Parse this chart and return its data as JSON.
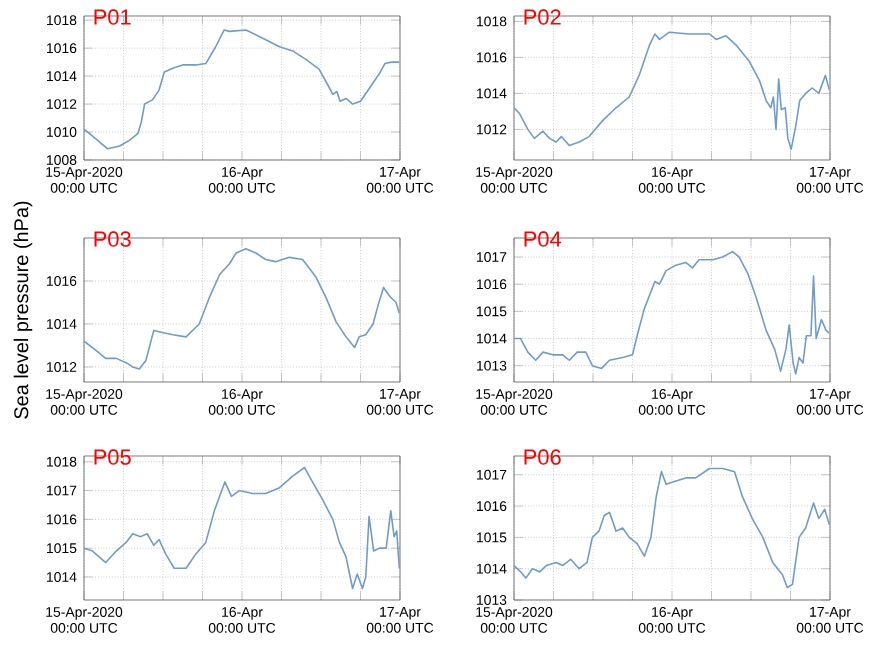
{
  "chart_data": [
    {
      "type": "line",
      "title": "P01",
      "x": [
        "2020-04-15T00:00",
        "2020-04-15T01:18",
        "2020-04-15T03:36",
        "2020-04-15T05:24",
        "2020-04-15T06:54",
        "2020-04-15T08:12",
        "2020-04-15T08:42",
        "2020-04-15T09:12",
        "2020-04-15T10:24",
        "2020-04-15T11:24",
        "2020-04-15T12:12",
        "2020-04-15T13:42",
        "2020-04-15T15:00",
        "2020-04-15T17:00",
        "2020-04-15T18:30",
        "2020-04-15T20:00",
        "2020-04-15T21:18",
        "2020-04-15T22:06",
        "2020-04-16T00:36",
        "2020-04-16T03:36",
        "2020-04-16T05:42",
        "2020-04-16T07:42",
        "2020-04-16T09:42",
        "2020-04-16T11:42",
        "2020-04-16T13:00",
        "2020-04-16T13:48",
        "2020-04-16T14:24",
        "2020-04-16T14:54",
        "2020-04-16T15:48",
        "2020-04-16T16:48",
        "2020-04-16T18:00",
        "2020-04-16T19:18",
        "2020-04-16T20:54",
        "2020-04-16T21:42",
        "2020-04-16T22:42",
        "2020-04-16T23:54"
      ],
      "series": [
        {
          "color": "#6f9ccb",
          "values": [
            1010.2,
            1009.7,
            1008.8,
            1009.0,
            1009.4,
            1009.9,
            1010.7,
            1012.0,
            1012.3,
            1013.0,
            1014.3,
            1014.6,
            1014.8,
            1014.8,
            1014.9,
            1016.1,
            1017.3,
            1017.2,
            1017.3,
            1016.6,
            1016.1,
            1015.8,
            1015.2,
            1014.5,
            1013.4,
            1012.7,
            1012.9,
            1012.2,
            1012.4,
            1012.0,
            1012.2,
            1013.1,
            1014.2,
            1014.9,
            1015.0,
            1015.0
          ]
        }
      ],
      "xlim": [
        "2020-04-15T00:00",
        "2020-04-17T00:00"
      ],
      "xticks": [
        {
          "value": "2020-04-15T00:00",
          "label": "15-Apr-2020\n00:00 UTC"
        },
        {
          "value": "2020-04-15T06:00",
          "label": null
        },
        {
          "value": "2020-04-15T12:00",
          "label": null
        },
        {
          "value": "2020-04-15T18:00",
          "label": null
        },
        {
          "value": "2020-04-16T00:00",
          "label": "16-Apr\n00:00 UTC"
        },
        {
          "value": "2020-04-16T06:00",
          "label": null
        },
        {
          "value": "2020-04-16T12:00",
          "label": null
        },
        {
          "value": "2020-04-16T18:00",
          "label": null
        },
        {
          "value": "2020-04-17T00:00",
          "label": "17-Apr\n00:00 UTC"
        }
      ],
      "ylim": [
        1008,
        1018.3
      ],
      "yticks": [
        1008,
        1010,
        1012,
        1014,
        1016,
        1018
      ],
      "grid": true
    },
    {
      "type": "line",
      "title": "P02",
      "x": [
        "2020-04-15T00:00",
        "2020-04-15T00:48",
        "2020-04-15T02:06",
        "2020-04-15T03:06",
        "2020-04-15T04:24",
        "2020-04-15T05:24",
        "2020-04-15T06:24",
        "2020-04-15T07:12",
        "2020-04-15T08:24",
        "2020-04-15T09:54",
        "2020-04-15T11:24",
        "2020-04-15T13:30",
        "2020-04-15T15:30",
        "2020-04-15T17:30",
        "2020-04-15T19:00",
        "2020-04-15T20:36",
        "2020-04-15T21:24",
        "2020-04-15T22:06",
        "2020-04-15T23:36",
        "2020-04-16T02:36",
        "2020-04-16T05:42",
        "2020-04-16T06:42",
        "2020-04-16T08:12",
        "2020-04-16T09:42",
        "2020-04-16T11:42",
        "2020-04-16T13:18",
        "2020-04-16T14:18",
        "2020-04-16T15:00",
        "2020-04-16T15:24",
        "2020-04-16T15:48",
        "2020-04-16T16:12",
        "2020-04-16T16:36",
        "2020-04-16T17:12",
        "2020-04-16T17:36",
        "2020-04-16T18:06",
        "2020-04-16T18:48",
        "2020-04-16T19:24",
        "2020-04-16T20:18",
        "2020-04-16T21:18",
        "2020-04-16T22:18",
        "2020-04-16T23:18",
        "2020-04-16T23:54"
      ],
      "series": [
        {
          "color": "#6f9ccb",
          "values": [
            1013.2,
            1012.9,
            1012.0,
            1011.5,
            1011.9,
            1011.5,
            1011.3,
            1011.6,
            1011.1,
            1011.3,
            1011.6,
            1012.5,
            1013.2,
            1013.8,
            1015.0,
            1016.7,
            1017.3,
            1017.0,
            1017.4,
            1017.3,
            1017.3,
            1017.0,
            1017.2,
            1016.7,
            1015.8,
            1014.7,
            1013.6,
            1013.2,
            1013.8,
            1012.0,
            1014.8,
            1013.1,
            1013.2,
            1011.5,
            1010.9,
            1012.2,
            1013.6,
            1014.0,
            1014.3,
            1014.0,
            1015.0,
            1014.2
          ]
        }
      ],
      "xlim": [
        "2020-04-15T00:00",
        "2020-04-17T00:00"
      ],
      "xticks": [
        {
          "value": "2020-04-15T00:00",
          "label": "15-Apr-2020\n00:00 UTC"
        },
        {
          "value": "2020-04-15T06:00",
          "label": null
        },
        {
          "value": "2020-04-15T12:00",
          "label": null
        },
        {
          "value": "2020-04-15T18:00",
          "label": null
        },
        {
          "value": "2020-04-16T00:00",
          "label": "16-Apr\n00:00 UTC"
        },
        {
          "value": "2020-04-16T06:00",
          "label": null
        },
        {
          "value": "2020-04-16T12:00",
          "label": null
        },
        {
          "value": "2020-04-16T18:00",
          "label": null
        },
        {
          "value": "2020-04-17T00:00",
          "label": "17-Apr\n00:00 UTC"
        }
      ],
      "ylim": [
        1010.3,
        1018.3
      ],
      "yticks": [
        1012,
        1014,
        1016,
        1018
      ],
      "grid": true
    },
    {
      "type": "line",
      "title": "P03",
      "ylabel": "Sea level pressure (hPa)",
      "x": [
        "2020-04-15T00:00",
        "2020-04-15T01:18",
        "2020-04-15T03:18",
        "2020-04-15T04:54",
        "2020-04-15T06:24",
        "2020-04-15T07:24",
        "2020-04-15T08:24",
        "2020-04-15T09:24",
        "2020-04-15T10:36",
        "2020-04-15T11:54",
        "2020-04-15T13:30",
        "2020-04-15T15:30",
        "2020-04-15T17:30",
        "2020-04-15T19:00",
        "2020-04-15T20:36",
        "2020-04-15T22:06",
        "2020-04-15T23:06",
        "2020-04-16T00:36",
        "2020-04-16T02:06",
        "2020-04-16T03:36",
        "2020-04-16T05:06",
        "2020-04-16T07:12",
        "2020-04-16T09:12",
        "2020-04-16T11:12",
        "2020-04-16T12:48",
        "2020-04-16T14:18",
        "2020-04-16T15:48",
        "2020-04-16T17:06",
        "2020-04-16T17:48",
        "2020-04-16T18:48",
        "2020-04-16T19:54",
        "2020-04-16T20:42",
        "2020-04-16T21:30",
        "2020-04-16T22:24",
        "2020-04-16T23:24",
        "2020-04-16T23:54"
      ],
      "series": [
        {
          "color": "#6f9ccb",
          "values": [
            1013.2,
            1012.9,
            1012.4,
            1012.4,
            1012.2,
            1012.0,
            1011.9,
            1012.3,
            1013.7,
            1013.6,
            1013.5,
            1013.4,
            1014.0,
            1015.2,
            1016.3,
            1016.8,
            1017.3,
            1017.5,
            1017.3,
            1017.0,
            1016.9,
            1017.1,
            1017.0,
            1016.2,
            1015.2,
            1014.1,
            1013.4,
            1012.9,
            1013.4,
            1013.5,
            1014.0,
            1014.9,
            1015.7,
            1015.3,
            1015.0,
            1014.5
          ]
        }
      ],
      "xlim": [
        "2020-04-15T00:00",
        "2020-04-17T00:00"
      ],
      "xticks": [
        {
          "value": "2020-04-15T00:00",
          "label": "15-Apr-2020\n00:00 UTC"
        },
        {
          "value": "2020-04-15T06:00",
          "label": null
        },
        {
          "value": "2020-04-15T12:00",
          "label": null
        },
        {
          "value": "2020-04-15T18:00",
          "label": null
        },
        {
          "value": "2020-04-16T00:00",
          "label": "16-Apr\n00:00 UTC"
        },
        {
          "value": "2020-04-16T06:00",
          "label": null
        },
        {
          "value": "2020-04-16T12:00",
          "label": null
        },
        {
          "value": "2020-04-16T18:00",
          "label": null
        },
        {
          "value": "2020-04-17T00:00",
          "label": "17-Apr\n00:00 UTC"
        }
      ],
      "ylim": [
        1011.3,
        1018.0
      ],
      "yticks": [
        1012,
        1014,
        1016
      ],
      "grid": true
    },
    {
      "type": "line",
      "title": "P04",
      "x": [
        "2020-04-15T00:00",
        "2020-04-15T01:00",
        "2020-04-15T02:06",
        "2020-04-15T03:18",
        "2020-04-15T04:24",
        "2020-04-15T05:54",
        "2020-04-15T07:24",
        "2020-04-15T08:24",
        "2020-04-15T09:36",
        "2020-04-15T10:54",
        "2020-04-15T11:54",
        "2020-04-15T13:18",
        "2020-04-15T14:30",
        "2020-04-15T16:30",
        "2020-04-15T18:00",
        "2020-04-15T18:42",
        "2020-04-15T19:48",
        "2020-04-15T21:24",
        "2020-04-15T22:06",
        "2020-04-15T23:06",
        "2020-04-16T00:36",
        "2020-04-16T02:06",
        "2020-04-16T03:06",
        "2020-04-16T04:06",
        "2020-04-16T06:12",
        "2020-04-16T07:42",
        "2020-04-16T09:12",
        "2020-04-16T10:12",
        "2020-04-16T11:30",
        "2020-04-16T12:48",
        "2020-04-16T14:18",
        "2020-04-16T15:36",
        "2020-04-16T16:30",
        "2020-04-16T17:18",
        "2020-04-16T17:48",
        "2020-04-16T18:24",
        "2020-04-16T18:48",
        "2020-04-16T19:18",
        "2020-04-16T19:54",
        "2020-04-16T20:24",
        "2020-04-16T21:06",
        "2020-04-16T21:30",
        "2020-04-16T21:54",
        "2020-04-16T22:42",
        "2020-04-16T23:24",
        "2020-04-16T23:54"
      ],
      "series": [
        {
          "color": "#6f9ccb",
          "values": [
            1014.0,
            1014.0,
            1013.5,
            1013.2,
            1013.5,
            1013.4,
            1013.4,
            1013.2,
            1013.5,
            1013.5,
            1013.0,
            1012.9,
            1013.2,
            1013.3,
            1013.4,
            1014.1,
            1015.1,
            1016.1,
            1016.0,
            1016.5,
            1016.7,
            1016.8,
            1016.6,
            1016.9,
            1016.9,
            1017.0,
            1017.2,
            1017.0,
            1016.4,
            1015.5,
            1014.3,
            1013.6,
            1012.8,
            1013.6,
            1014.5,
            1013.1,
            1012.7,
            1013.3,
            1013.1,
            1014.1,
            1014.1,
            1016.3,
            1014.0,
            1014.7,
            1014.3,
            1014.2
          ]
        }
      ],
      "xlim": [
        "2020-04-15T00:00",
        "2020-04-17T00:00"
      ],
      "xticks": [
        {
          "value": "2020-04-15T00:00",
          "label": "15-Apr-2020\n00:00 UTC"
        },
        {
          "value": "2020-04-15T06:00",
          "label": null
        },
        {
          "value": "2020-04-15T12:00",
          "label": null
        },
        {
          "value": "2020-04-15T18:00",
          "label": null
        },
        {
          "value": "2020-04-16T00:00",
          "label": "16-Apr\n00:00 UTC"
        },
        {
          "value": "2020-04-16T06:00",
          "label": null
        },
        {
          "value": "2020-04-16T12:00",
          "label": null
        },
        {
          "value": "2020-04-16T18:00",
          "label": null
        },
        {
          "value": "2020-04-17T00:00",
          "label": "17-Apr\n00:00 UTC"
        }
      ],
      "ylim": [
        1012.4,
        1017.7
      ],
      "yticks": [
        1013,
        1014,
        1015,
        1016,
        1017
      ],
      "grid": true
    },
    {
      "type": "line",
      "title": "P05",
      "x": [
        "2020-04-15T00:00",
        "2020-04-15T01:18",
        "2020-04-15T03:18",
        "2020-04-15T04:54",
        "2020-04-15T06:24",
        "2020-04-15T07:24",
        "2020-04-15T08:36",
        "2020-04-15T09:36",
        "2020-04-15T10:36",
        "2020-04-15T11:24",
        "2020-04-15T12:24",
        "2020-04-15T13:42",
        "2020-04-15T15:30",
        "2020-04-15T17:00",
        "2020-04-15T18:30",
        "2020-04-15T19:48",
        "2020-04-15T21:24",
        "2020-04-15T22:24",
        "2020-04-15T23:36",
        "2020-04-16T01:36",
        "2020-04-16T03:36",
        "2020-04-16T05:42",
        "2020-04-16T07:42",
        "2020-04-16T09:30",
        "2020-04-16T10:42",
        "2020-04-16T12:12",
        "2020-04-16T13:48",
        "2020-04-16T14:48",
        "2020-04-16T15:48",
        "2020-04-16T16:48",
        "2020-04-16T17:30",
        "2020-04-16T18:18",
        "2020-04-16T18:48",
        "2020-04-16T19:18",
        "2020-04-16T20:00",
        "2020-04-16T20:54",
        "2020-04-16T21:54",
        "2020-04-16T22:36",
        "2020-04-16T23:06",
        "2020-04-16T23:30",
        "2020-04-16T23:54"
      ],
      "series": [
        {
          "color": "#6f9ccb",
          "values": [
            1015.0,
            1014.9,
            1014.5,
            1014.9,
            1015.2,
            1015.5,
            1015.4,
            1015.5,
            1015.1,
            1015.3,
            1014.8,
            1014.3,
            1014.3,
            1014.8,
            1015.2,
            1016.3,
            1017.3,
            1016.8,
            1017.0,
            1016.9,
            1016.9,
            1017.1,
            1017.5,
            1017.8,
            1017.3,
            1016.7,
            1016.0,
            1015.2,
            1014.7,
            1013.6,
            1014.1,
            1013.6,
            1014.0,
            1016.1,
            1014.9,
            1015.0,
            1015.0,
            1016.3,
            1015.4,
            1015.6,
            1014.3
          ]
        }
      ],
      "xlim": [
        "2020-04-15T00:00",
        "2020-04-17T00:00"
      ],
      "xticks": [
        {
          "value": "2020-04-15T00:00",
          "label": "15-Apr-2020\n00:00 UTC"
        },
        {
          "value": "2020-04-15T06:00",
          "label": null
        },
        {
          "value": "2020-04-15T12:00",
          "label": null
        },
        {
          "value": "2020-04-15T18:00",
          "label": null
        },
        {
          "value": "2020-04-16T00:00",
          "label": "16-Apr\n00:00 UTC"
        },
        {
          "value": "2020-04-16T06:00",
          "label": null
        },
        {
          "value": "2020-04-16T12:00",
          "label": null
        },
        {
          "value": "2020-04-16T18:00",
          "label": null
        },
        {
          "value": "2020-04-17T00:00",
          "label": "17-Apr\n00:00 UTC"
        }
      ],
      "ylim": [
        1013.2,
        1018.2
      ],
      "yticks": [
        1014,
        1015,
        1016,
        1017,
        1018
      ],
      "grid": true
    },
    {
      "type": "line",
      "title": "P06",
      "x": [
        "2020-04-15T00:00",
        "2020-04-15T01:00",
        "2020-04-15T01:48",
        "2020-04-15T02:48",
        "2020-04-15T03:54",
        "2020-04-15T04:54",
        "2020-04-15T06:24",
        "2020-04-15T07:24",
        "2020-04-15T08:36",
        "2020-04-15T09:54",
        "2020-04-15T11:06",
        "2020-04-15T11:54",
        "2020-04-15T12:54",
        "2020-04-15T13:42",
        "2020-04-15T14:30",
        "2020-04-15T15:30",
        "2020-04-15T16:30",
        "2020-04-15T17:30",
        "2020-04-15T18:42",
        "2020-04-15T19:48",
        "2020-04-15T20:48",
        "2020-04-15T21:36",
        "2020-04-15T22:24",
        "2020-04-15T23:06",
        "2020-04-16T00:36",
        "2020-04-16T02:06",
        "2020-04-16T03:36",
        "2020-04-16T05:42",
        "2020-04-16T07:42",
        "2020-04-16T09:30",
        "2020-04-16T10:42",
        "2020-04-16T12:12",
        "2020-04-16T13:48",
        "2020-04-16T15:18",
        "2020-04-16T16:48",
        "2020-04-16T17:30",
        "2020-04-16T18:18",
        "2020-04-16T19:18",
        "2020-04-16T20:18",
        "2020-04-16T21:30",
        "2020-04-16T22:18",
        "2020-04-16T23:12",
        "2020-04-16T23:54"
      ],
      "series": [
        {
          "color": "#6f9ccb",
          "values": [
            1014.1,
            1013.9,
            1013.7,
            1014.0,
            1013.9,
            1014.1,
            1014.2,
            1014.1,
            1014.3,
            1014.0,
            1014.2,
            1015.0,
            1015.2,
            1015.7,
            1015.8,
            1015.2,
            1015.3,
            1015.0,
            1014.8,
            1014.4,
            1015.0,
            1016.3,
            1017.1,
            1016.7,
            1016.8,
            1016.9,
            1016.9,
            1017.2,
            1017.2,
            1017.1,
            1016.3,
            1015.6,
            1015.0,
            1014.2,
            1013.8,
            1013.4,
            1013.5,
            1015.0,
            1015.3,
            1016.1,
            1015.6,
            1015.9,
            1015.4
          ]
        }
      ],
      "xlim": [
        "2020-04-15T00:00",
        "2020-04-17T00:00"
      ],
      "xticks": [
        {
          "value": "2020-04-15T00:00",
          "label": "15-Apr-2020\n00:00 UTC"
        },
        {
          "value": "2020-04-15T06:00",
          "label": null
        },
        {
          "value": "2020-04-15T12:00",
          "label": null
        },
        {
          "value": "2020-04-15T18:00",
          "label": null
        },
        {
          "value": "2020-04-16T00:00",
          "label": "16-Apr\n00:00 UTC"
        },
        {
          "value": "2020-04-16T06:00",
          "label": null
        },
        {
          "value": "2020-04-16T12:00",
          "label": null
        },
        {
          "value": "2020-04-16T18:00",
          "label": null
        },
        {
          "value": "2020-04-17T00:00",
          "label": "17-Apr\n00:00 UTC"
        }
      ],
      "ylim": [
        1013,
        1017.6
      ],
      "yticks": [
        1013,
        1014,
        1015,
        1016,
        1017
      ],
      "grid": true
    }
  ]
}
